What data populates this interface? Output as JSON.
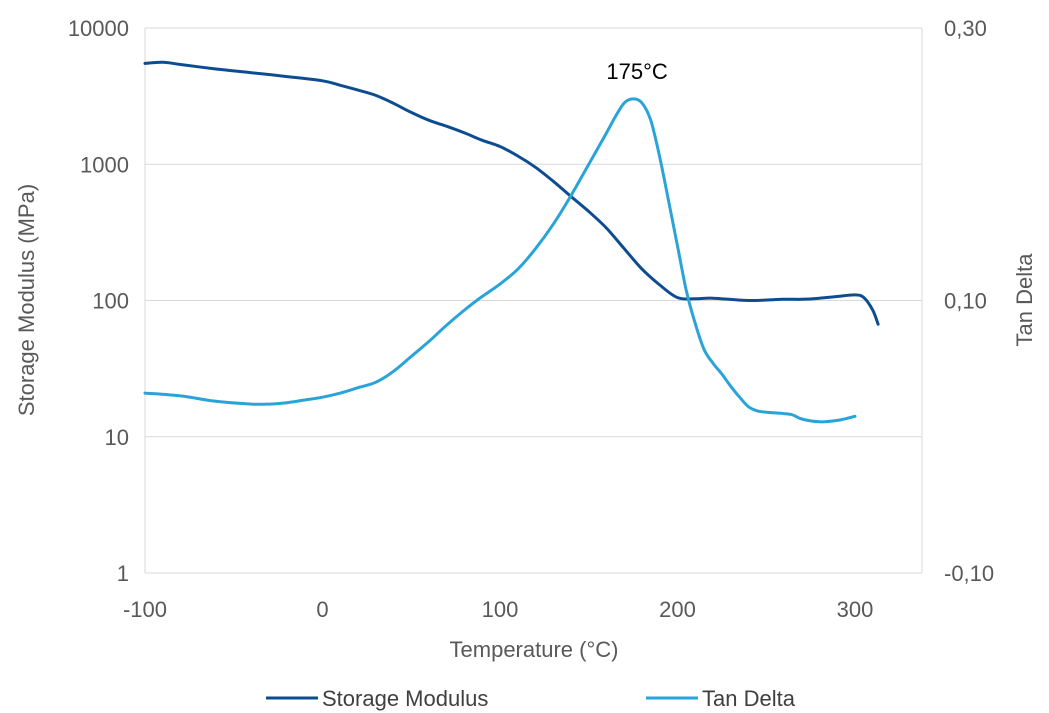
{
  "chart_data": {
    "type": "line",
    "title": "",
    "xlabel": "Temperature (°C)",
    "ylabel": "Storage Modulus (MPa)",
    "y2label": "Tan Delta",
    "xlim": [
      -100,
      320
    ],
    "x_ticks": [
      -100,
      0,
      100,
      200,
      300
    ],
    "ylim": [
      1,
      10000
    ],
    "yscale": "log",
    "y_ticks": [
      1,
      10,
      100,
      1000,
      10000
    ],
    "y2lim": [
      -0.1,
      0.3
    ],
    "y2_ticks": [
      -0.1,
      0.1,
      0.3
    ],
    "y2_tick_labels": [
      "-0,10",
      "0,10",
      "0,30"
    ],
    "grid": true,
    "legend_placement": "bottom",
    "colors": {
      "storage": "#0e4c92",
      "tan": "#2aa4d8",
      "grid": "#d9d9d9",
      "text": "#595959"
    },
    "series": [
      {
        "name": "Storage Modulus",
        "axis": "left",
        "x": [
          -100,
          -90,
          -80,
          -60,
          -40,
          -20,
          0,
          10,
          20,
          30,
          40,
          50,
          60,
          70,
          80,
          90,
          100,
          110,
          120,
          130,
          140,
          150,
          160,
          170,
          180,
          190,
          200,
          210,
          220,
          240,
          260,
          270,
          280,
          290,
          300,
          305,
          310,
          313
        ],
        "values": [
          5500,
          5600,
          5400,
          5000,
          4700,
          4400,
          4100,
          3800,
          3500,
          3200,
          2800,
          2400,
          2100,
          1900,
          1700,
          1500,
          1350,
          1150,
          950,
          750,
          580,
          450,
          340,
          240,
          170,
          130,
          105,
          103,
          104,
          100,
          102,
          102,
          104,
          107,
          110,
          105,
          85,
          67
        ]
      },
      {
        "name": "Tan Delta",
        "axis": "right",
        "x": [
          -100,
          -80,
          -60,
          -40,
          -30,
          -20,
          -10,
          0,
          10,
          20,
          30,
          40,
          50,
          60,
          70,
          80,
          90,
          100,
          110,
          120,
          130,
          140,
          150,
          160,
          165,
          170,
          175,
          180,
          185,
          190,
          195,
          200,
          205,
          210,
          215,
          220,
          225,
          230,
          235,
          240,
          245,
          250,
          260,
          265,
          270,
          280,
          290,
          300
        ],
        "values": [
          0.032,
          0.03,
          0.026,
          0.024,
          0.024,
          0.025,
          0.027,
          0.029,
          0.032,
          0.036,
          0.04,
          0.048,
          0.059,
          0.07,
          0.082,
          0.093,
          0.103,
          0.112,
          0.123,
          0.138,
          0.156,
          0.177,
          0.2,
          0.223,
          0.235,
          0.245,
          0.248,
          0.245,
          0.232,
          0.205,
          0.173,
          0.14,
          0.107,
          0.083,
          0.064,
          0.054,
          0.046,
          0.037,
          0.029,
          0.022,
          0.019,
          0.018,
          0.017,
          0.016,
          0.013,
          0.011,
          0.012,
          0.015
        ]
      }
    ],
    "annotations": [
      {
        "text": "175°C",
        "x": 175,
        "y2": 0.248
      }
    ]
  }
}
